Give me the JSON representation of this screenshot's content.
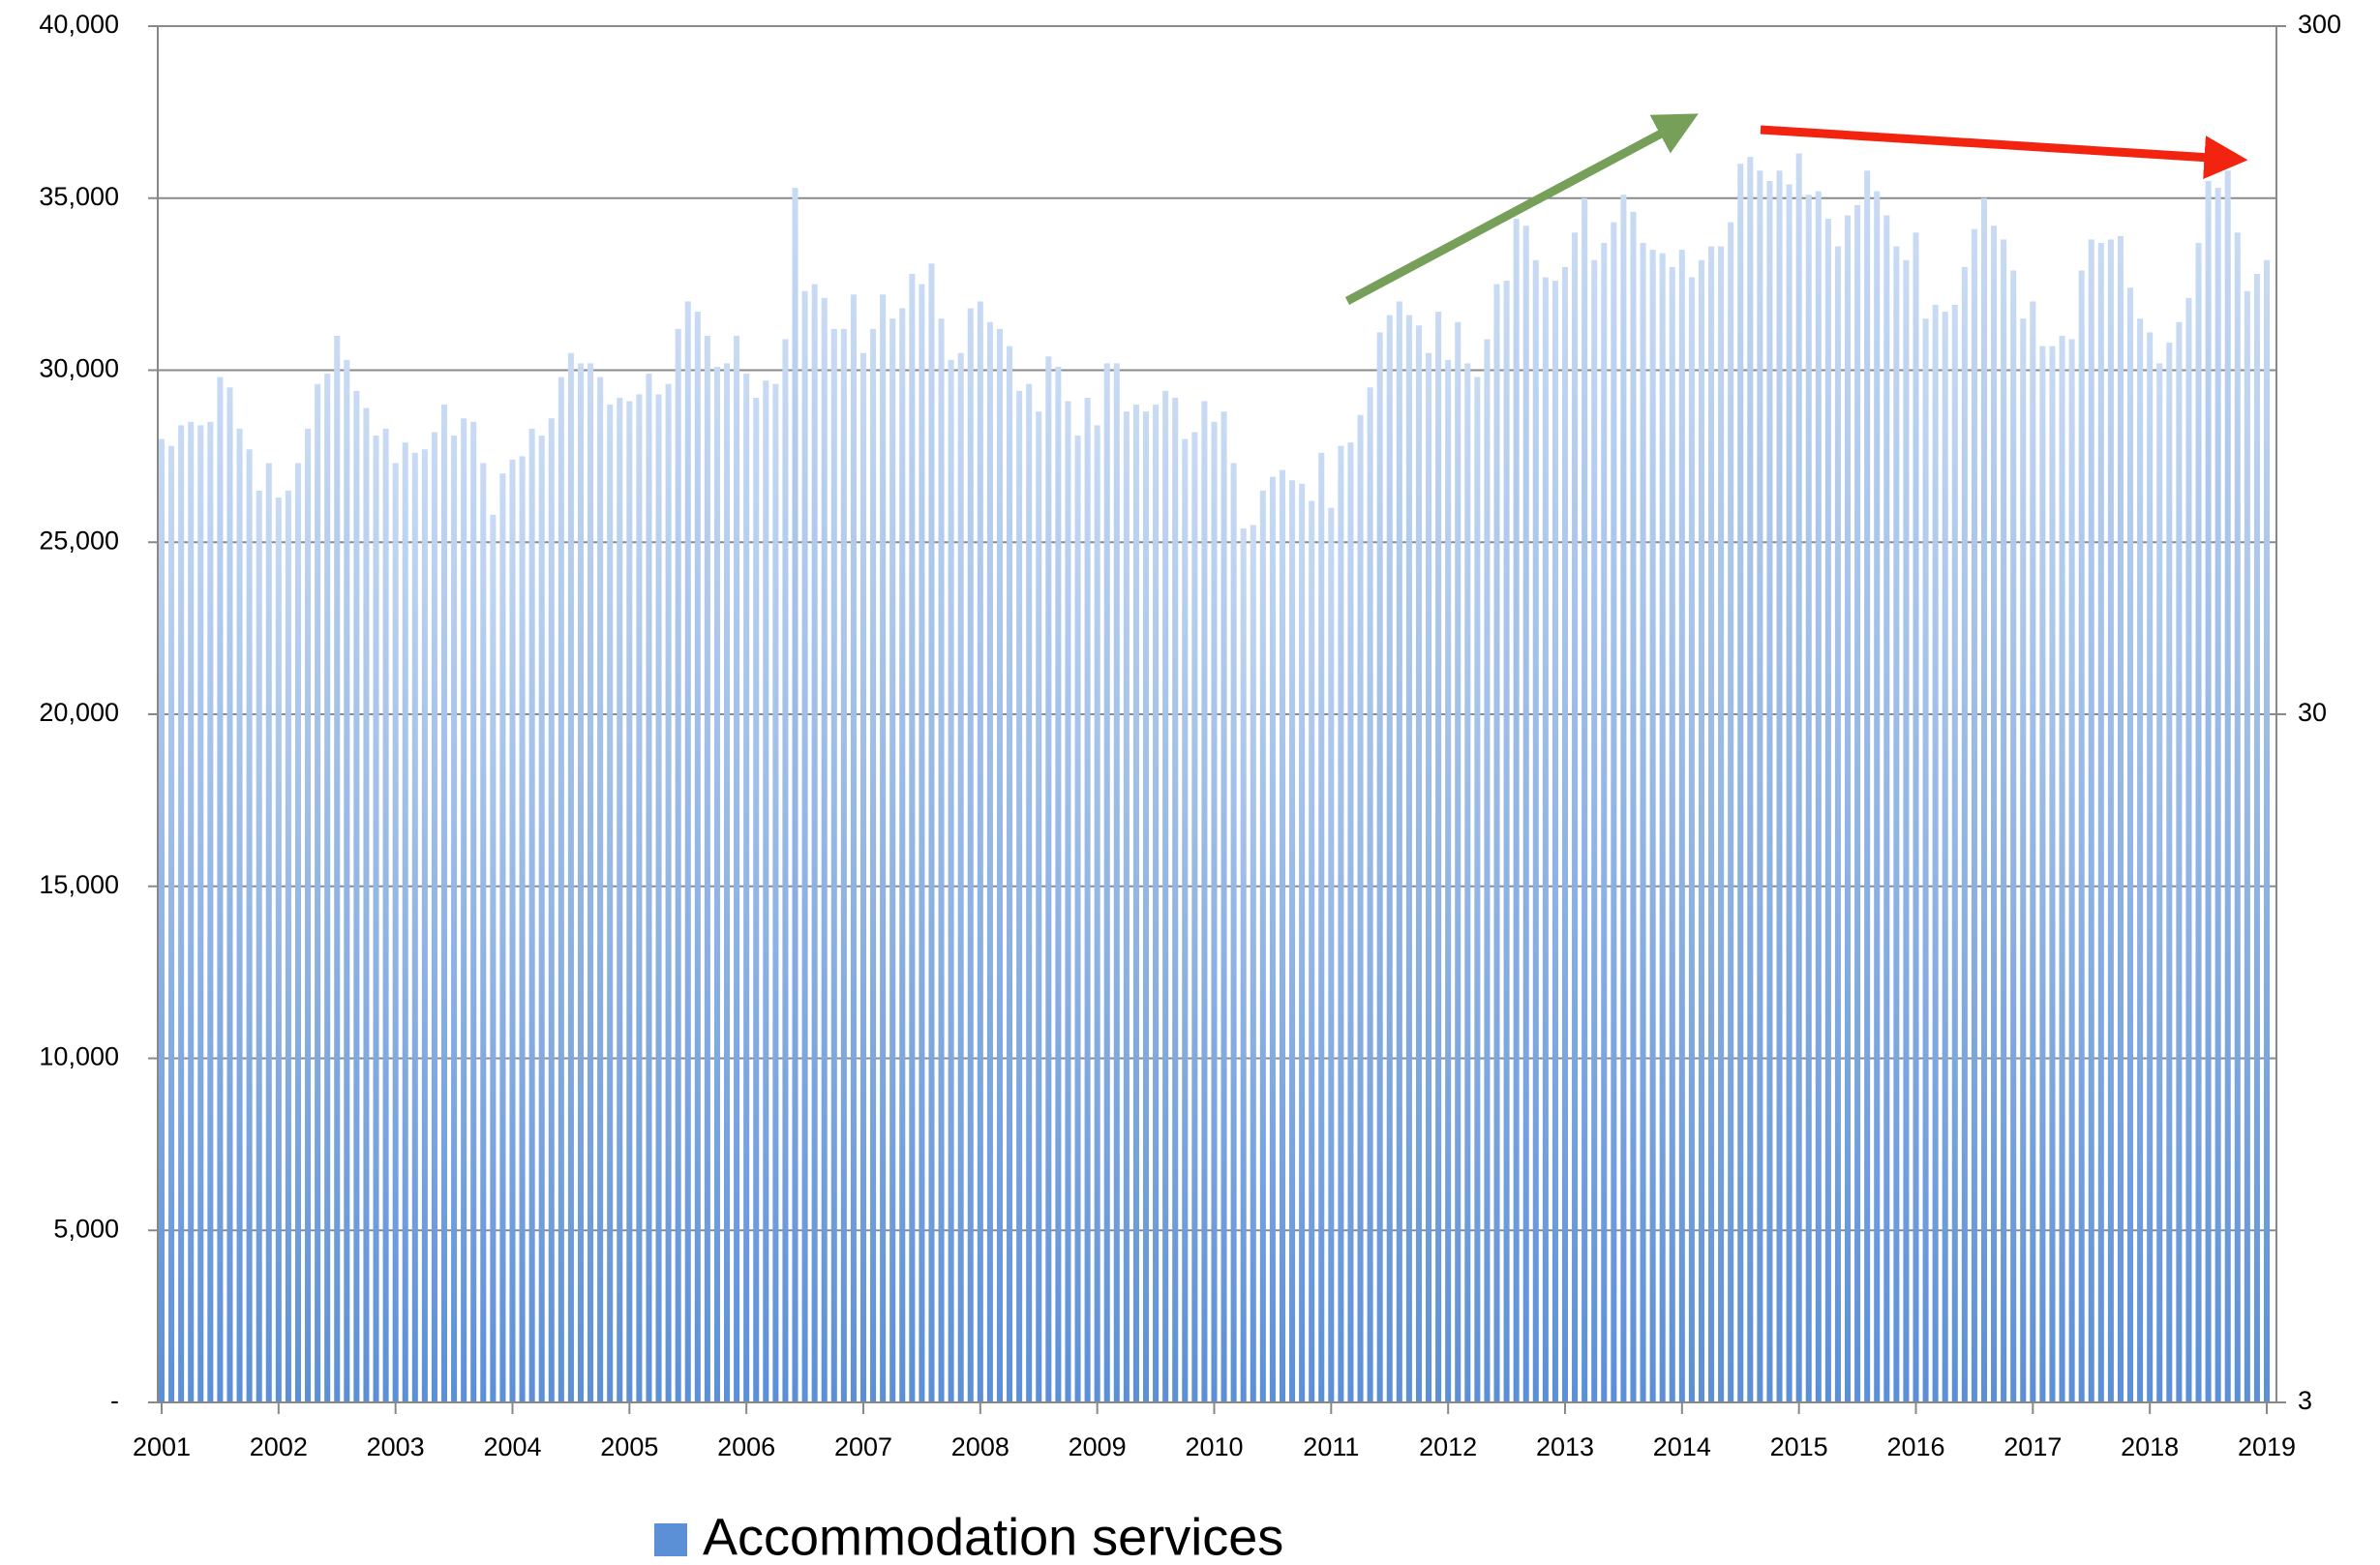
{
  "chart_data": {
    "type": "bar",
    "series": [
      {
        "name": "Accommodation services",
        "color": "#5b8fd6",
        "values": [
          28000,
          27800,
          28400,
          28500,
          28400,
          28500,
          29800,
          29500,
          28300,
          27700,
          26500,
          27300,
          26300,
          26500,
          27300,
          28300,
          29600,
          29900,
          31000,
          30300,
          29400,
          28900,
          28100,
          28300,
          27300,
          27900,
          27600,
          27700,
          28200,
          29000,
          28100,
          28600,
          28500,
          27300,
          25800,
          27000,
          27400,
          27500,
          28300,
          28100,
          28600,
          29800,
          30500,
          30200,
          30200,
          29800,
          29000,
          29200,
          29100,
          29300,
          29900,
          29300,
          29600,
          31200,
          32000,
          31700,
          31000,
          30100,
          30200,
          31000,
          29900,
          29200,
          29700,
          29600,
          30900,
          35300,
          32300,
          32500,
          32100,
          31200,
          31200,
          32200,
          30500,
          31200,
          32200,
          31500,
          31800,
          32800,
          32500,
          33100,
          31500,
          30300,
          30500,
          31800,
          32000,
          31400,
          31200,
          30700,
          29400,
          29600,
          28800,
          30400,
          30100,
          29100,
          28100,
          29200,
          28400,
          30200,
          30200,
          28800,
          29000,
          28800,
          29000,
          29400,
          29200,
          28000,
          28200,
          29100,
          28500,
          28800,
          27300,
          25400,
          25500,
          26500,
          26900,
          27100,
          26800,
          26700,
          26200,
          27600,
          26000,
          27800,
          27900,
          28700,
          29500,
          31100,
          31600,
          32000,
          31600,
          31300,
          30500,
          31700,
          30300,
          31400,
          30200,
          29800,
          30900,
          32500,
          32600,
          34400,
          34200,
          33200,
          32700,
          32600,
          33000,
          34000,
          35000,
          33200,
          33700,
          34300,
          35100,
          34600,
          33700,
          33500,
          33400,
          33000,
          33500,
          32700,
          33200,
          33600,
          33600,
          34300,
          36000,
          36200,
          35800,
          35500,
          35800,
          35400,
          36300,
          35100,
          35200,
          34400,
          33600,
          34500,
          34800,
          35800,
          35200,
          34500,
          33600,
          33200,
          34000,
          31500,
          31900,
          31700,
          31900,
          33000,
          34100,
          35000,
          34200,
          33800,
          32900,
          31500,
          32000,
          30700,
          30700,
          31000,
          30900,
          32900,
          33800,
          33700,
          33800,
          33900,
          32400,
          31500,
          31100,
          30200,
          30800,
          31400,
          32100,
          33700,
          35500,
          35300,
          35800,
          34000,
          32300,
          32800,
          33200
        ]
      }
    ],
    "categories": [
      "2001",
      null,
      null,
      null,
      null,
      null,
      null,
      null,
      null,
      null,
      null,
      null,
      "2002",
      null,
      null,
      null,
      null,
      null,
      null,
      null,
      null,
      null,
      null,
      null,
      "2003",
      null,
      null,
      null,
      null,
      null,
      null,
      null,
      null,
      null,
      null,
      null,
      "2004",
      null,
      null,
      null,
      null,
      null,
      null,
      null,
      null,
      null,
      null,
      null,
      "2005",
      null,
      null,
      null,
      null,
      null,
      null,
      null,
      null,
      null,
      null,
      null,
      "2006",
      null,
      null,
      null,
      null,
      null,
      null,
      null,
      null,
      null,
      null,
      null,
      "2007",
      null,
      null,
      null,
      null,
      null,
      null,
      null,
      null,
      null,
      null,
      null,
      "2008",
      null,
      null,
      null,
      null,
      null,
      null,
      null,
      null,
      null,
      null,
      null,
      "2009",
      null,
      null,
      null,
      null,
      null,
      null,
      null,
      null,
      null,
      null,
      null,
      "2010",
      null,
      null,
      null,
      null,
      null,
      null,
      null,
      null,
      null,
      null,
      null,
      "2011",
      null,
      null,
      null,
      null,
      null,
      null,
      null,
      null,
      null,
      null,
      null,
      "2012",
      null,
      null,
      null,
      null,
      null,
      null,
      null,
      null,
      null,
      null,
      null,
      "2013",
      null,
      null,
      null,
      null,
      null,
      null,
      null,
      null,
      null,
      null,
      null,
      "2014",
      null,
      null,
      null,
      null,
      null,
      null,
      null,
      null,
      null,
      null,
      null,
      "2015",
      null,
      null,
      null,
      null,
      null,
      null,
      null,
      null,
      null,
      null,
      null,
      "2016",
      null,
      null,
      null,
      null,
      null,
      null,
      null,
      null,
      null,
      null,
      null,
      "2017",
      null,
      null,
      null,
      null,
      null,
      null,
      null,
      null,
      null,
      null,
      null,
      "2018",
      null,
      null,
      null,
      null,
      null,
      null,
      null,
      null,
      null,
      null,
      null,
      "2019"
    ],
    "ylim": [
      0,
      40000
    ],
    "yticks": [
      {
        "value": 0,
        "label": "-"
      },
      {
        "value": 5000,
        "label": "5,000"
      },
      {
        "value": 10000,
        "label": "10,000"
      },
      {
        "value": 15000,
        "label": "15,000"
      },
      {
        "value": 20000,
        "label": "20,000"
      },
      {
        "value": 25000,
        "label": "25,000"
      },
      {
        "value": 30000,
        "label": "30,000"
      },
      {
        "value": 35000,
        "label": "35,000"
      },
      {
        "value": 40000,
        "label": "40,000"
      }
    ],
    "y2lim": [
      3,
      300
    ],
    "y2ticks": [
      3,
      30,
      300
    ],
    "y2log": true,
    "grid": true,
    "legend": "bottom"
  }
}
